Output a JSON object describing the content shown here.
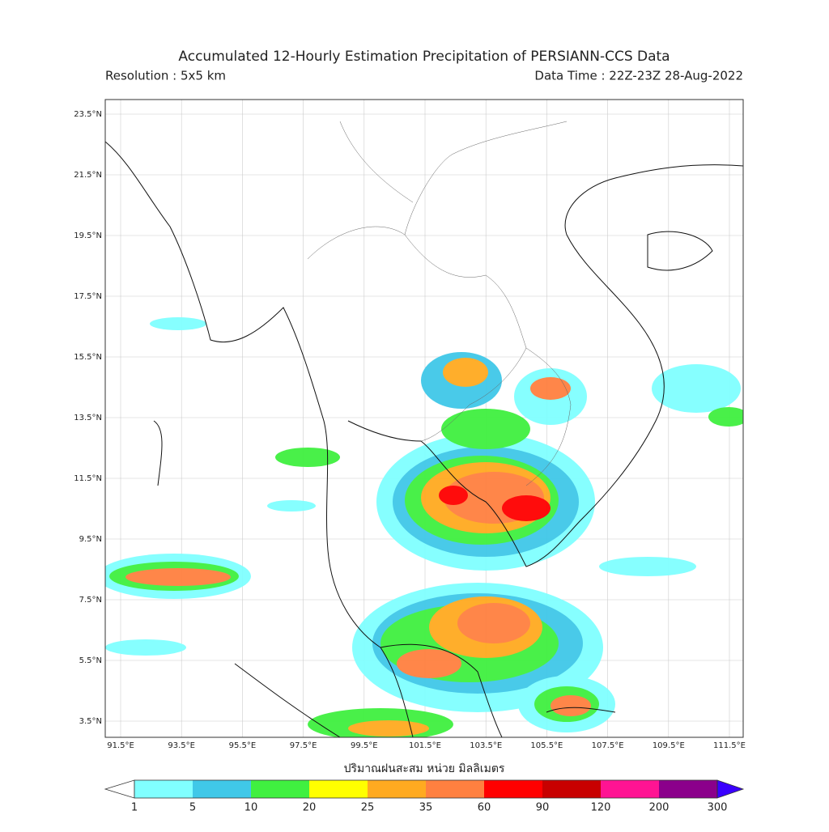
{
  "header": {
    "title": "Accumulated 12-Hourly Estimation Precipitation of PERSIANN-CCS Data",
    "resolution": "Resolution : 5x5 km",
    "data_time": "Data Time : 22Z-23Z 28-Aug-2022"
  },
  "map": {
    "lat_labels": [
      "23.5°N",
      "21.5°N",
      "19.5°N",
      "17.5°N",
      "15.5°N",
      "13.5°N",
      "11.5°N",
      "9.5°N",
      "7.5°N",
      "5.5°N",
      "3.5°N"
    ],
    "lon_labels": [
      "91.5°E",
      "93.5°E",
      "95.5°E",
      "97.5°E",
      "99.5°E",
      "101.5°E",
      "103.5°E",
      "105.5°E",
      "107.5°E",
      "109.5°E",
      "111.5°E"
    ]
  },
  "colorbar": {
    "label": "ปริมาณฝนสะสม หน่วย มิลลิเมตร",
    "ticks": [
      1,
      5,
      10,
      20,
      25,
      35,
      60,
      90,
      120,
      200,
      300
    ],
    "colors": [
      "#80ffff",
      "#40c8e8",
      "#40f040",
      "#ffff00",
      "#ffaa20",
      "#ff8040",
      "#ff0000",
      "#c80000",
      "#ff1493",
      "#8b008b",
      "#3a00ff"
    ]
  }
}
